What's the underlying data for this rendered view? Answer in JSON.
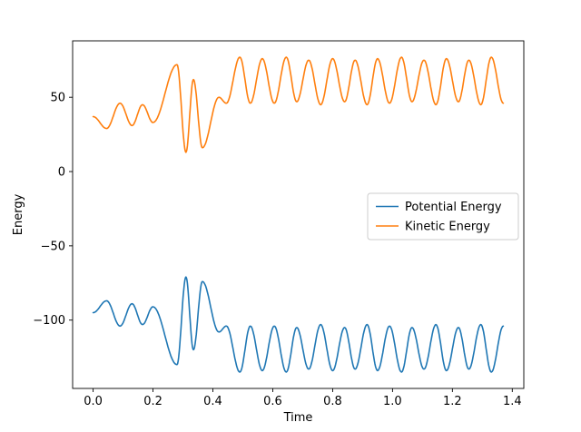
{
  "chart_data": {
    "type": "line",
    "title": "",
    "xlabel": "Time",
    "ylabel": "Energy",
    "xlim": [
      -0.0685,
      1.4385
    ],
    "ylim": [
      -146,
      88
    ],
    "grid": false,
    "xtick_values": [
      0.0,
      0.2,
      0.4,
      0.6,
      0.8,
      1.0,
      1.2,
      1.4
    ],
    "xtick_labels": [
      "0.0",
      "0.2",
      "0.4",
      "0.6",
      "0.8",
      "1.0",
      "1.2",
      "1.4"
    ],
    "ytick_values": [
      -100,
      -50,
      0,
      50
    ],
    "ytick_labels": [
      "−100",
      "−50",
      "0",
      "50"
    ],
    "x": [
      0.0,
      0.045,
      0.09,
      0.13,
      0.165,
      0.2,
      0.28,
      0.31,
      0.335,
      0.365,
      0.42,
      0.445,
      0.49,
      0.525,
      0.565,
      0.605,
      0.645,
      0.68,
      0.72,
      0.76,
      0.8,
      0.84,
      0.875,
      0.915,
      0.95,
      0.99,
      1.03,
      1.065,
      1.105,
      1.145,
      1.18,
      1.22,
      1.255,
      1.295,
      1.33,
      1.37
    ],
    "series": [
      {
        "name": "Potential Energy",
        "color": "#1f77b4",
        "y": [
          -95,
          -87,
          -104,
          -89,
          -103,
          -91,
          -130,
          -71,
          -120,
          -74,
          -108,
          -104,
          -135,
          -104,
          -134,
          -104,
          -135,
          -105,
          -133,
          -103,
          -134,
          -105,
          -133,
          -103,
          -134,
          -104,
          -135,
          -105,
          -133,
          -103,
          -134,
          -105,
          -133,
          -103,
          -135,
          -104
        ]
      },
      {
        "name": "Kinetic Energy",
        "color": "#ff7f0e",
        "y": [
          37,
          29,
          46,
          31,
          45,
          33,
          72,
          13,
          62,
          16,
          50,
          46,
          77,
          46,
          76,
          46,
          77,
          47,
          75,
          45,
          76,
          47,
          75,
          45,
          76,
          46,
          77,
          47,
          75,
          45,
          76,
          47,
          75,
          45,
          77,
          46
        ]
      }
    ],
    "legend": {
      "position": "center right",
      "entries": [
        "Potential Energy",
        "Kinetic Energy"
      ]
    }
  }
}
